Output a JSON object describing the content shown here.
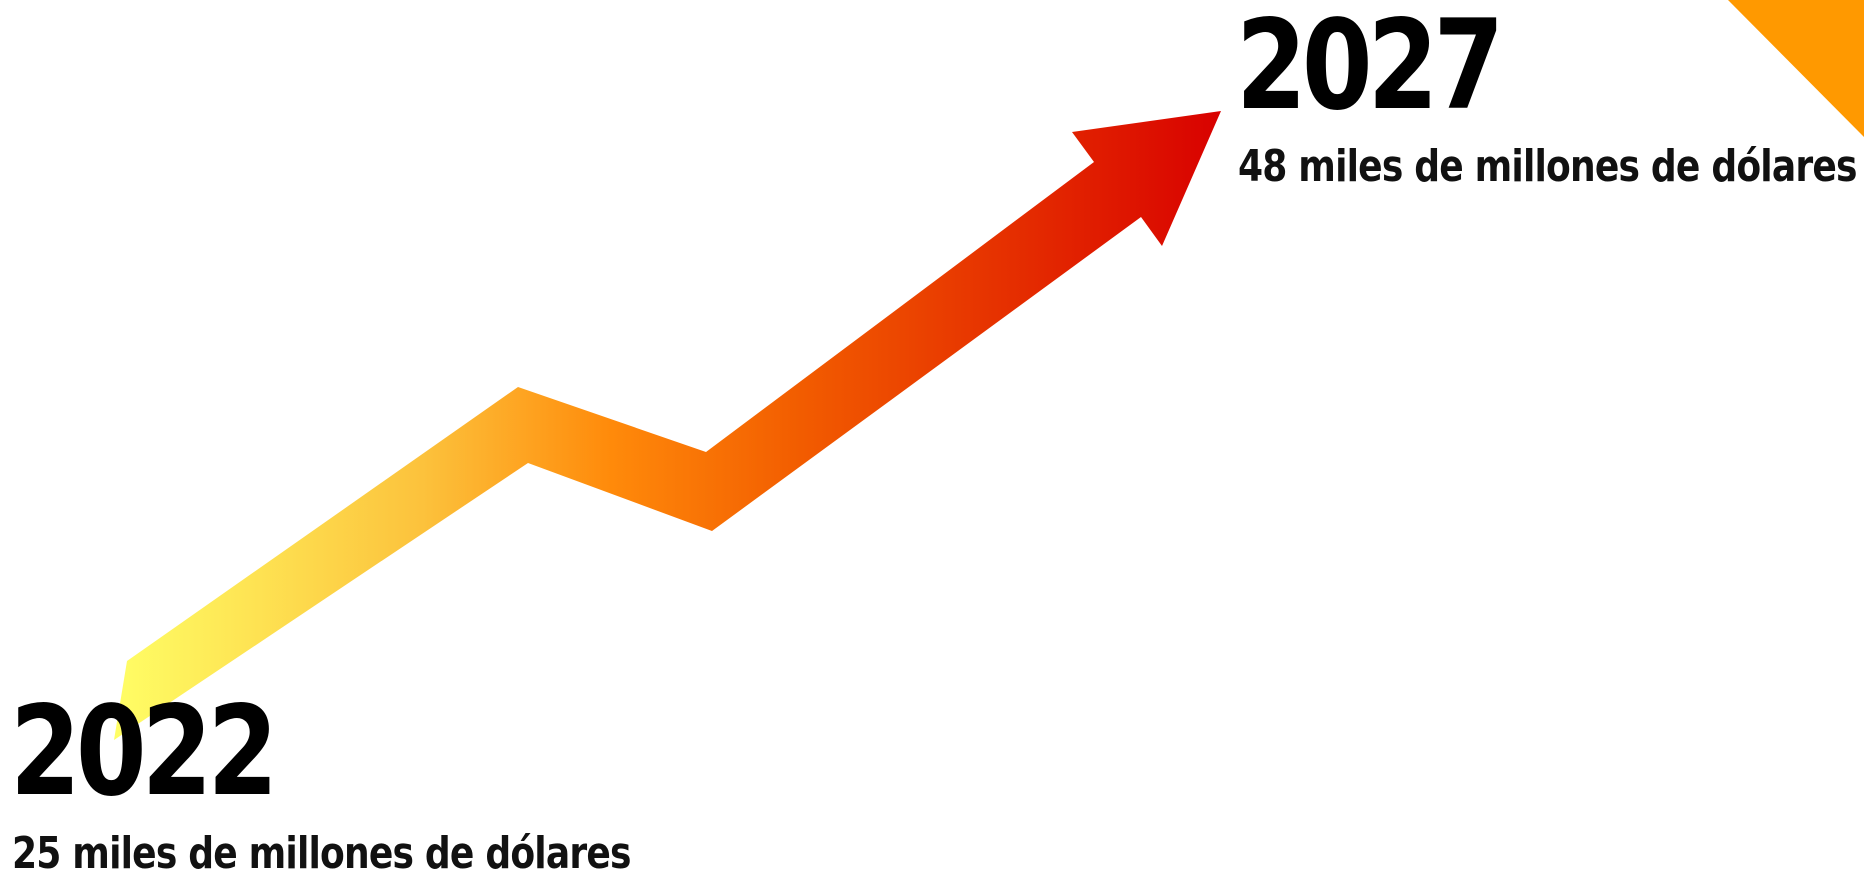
{
  "start": {
    "year": "2022",
    "amount": "25 miles de millones de dólares"
  },
  "end": {
    "year": "2027",
    "amount": "48 miles de millones de dólares"
  },
  "colors": {
    "arrow_start": "#ffff66",
    "arrow_mid": "#ff7a00",
    "arrow_end": "#d80000",
    "corner_accent": "#ff9900",
    "text": "#000000"
  }
}
